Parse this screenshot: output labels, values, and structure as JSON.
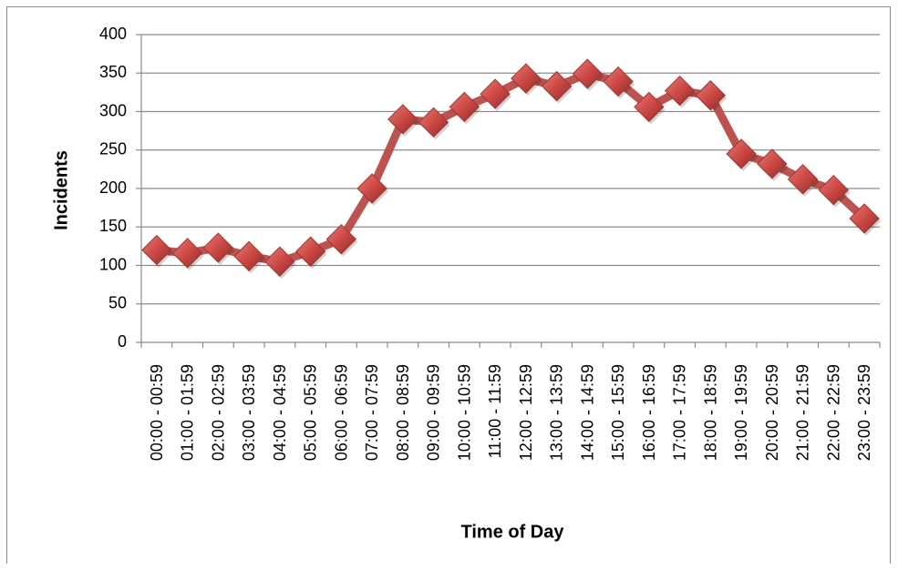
{
  "chart_data": {
    "type": "line",
    "title": "",
    "xlabel": "Time of Day",
    "ylabel": "Incidents",
    "ylim": [
      0,
      400
    ],
    "yticks": [
      0,
      50,
      100,
      150,
      200,
      250,
      300,
      350,
      400
    ],
    "grid": true,
    "legend": "none",
    "categories": [
      "00:00 - 00:59",
      "01:00 - 01:59",
      "02:00 - 02:59",
      "03:00 - 03:59",
      "04:00 - 04:59",
      "05:00 - 05:59",
      "06:00 - 06:59",
      "07:00 - 07:59",
      "08:00 - 08:59",
      "09:00 - 09:59",
      "10:00 - 10:59",
      "11:00 - 11:59",
      "12:00 - 12:59",
      "13:00 - 13:59",
      "14:00 - 14:59",
      "15:00 - 15:59",
      "16:00 - 16:59",
      "17:00 - 17:59",
      "18:00 - 18:59",
      "19:00 - 19:59",
      "20:00 - 20:59",
      "21:00 - 21:59",
      "22:00 - 22:59",
      "23:00 - 23:59"
    ],
    "series": [
      {
        "values": [
          120,
          116,
          123,
          112,
          105,
          118,
          134,
          200,
          290,
          286,
          306,
          323,
          343,
          333,
          349,
          339,
          306,
          327,
          321,
          245,
          232,
          212,
          198,
          161
        ],
        "color": "#c0504d"
      }
    ]
  }
}
